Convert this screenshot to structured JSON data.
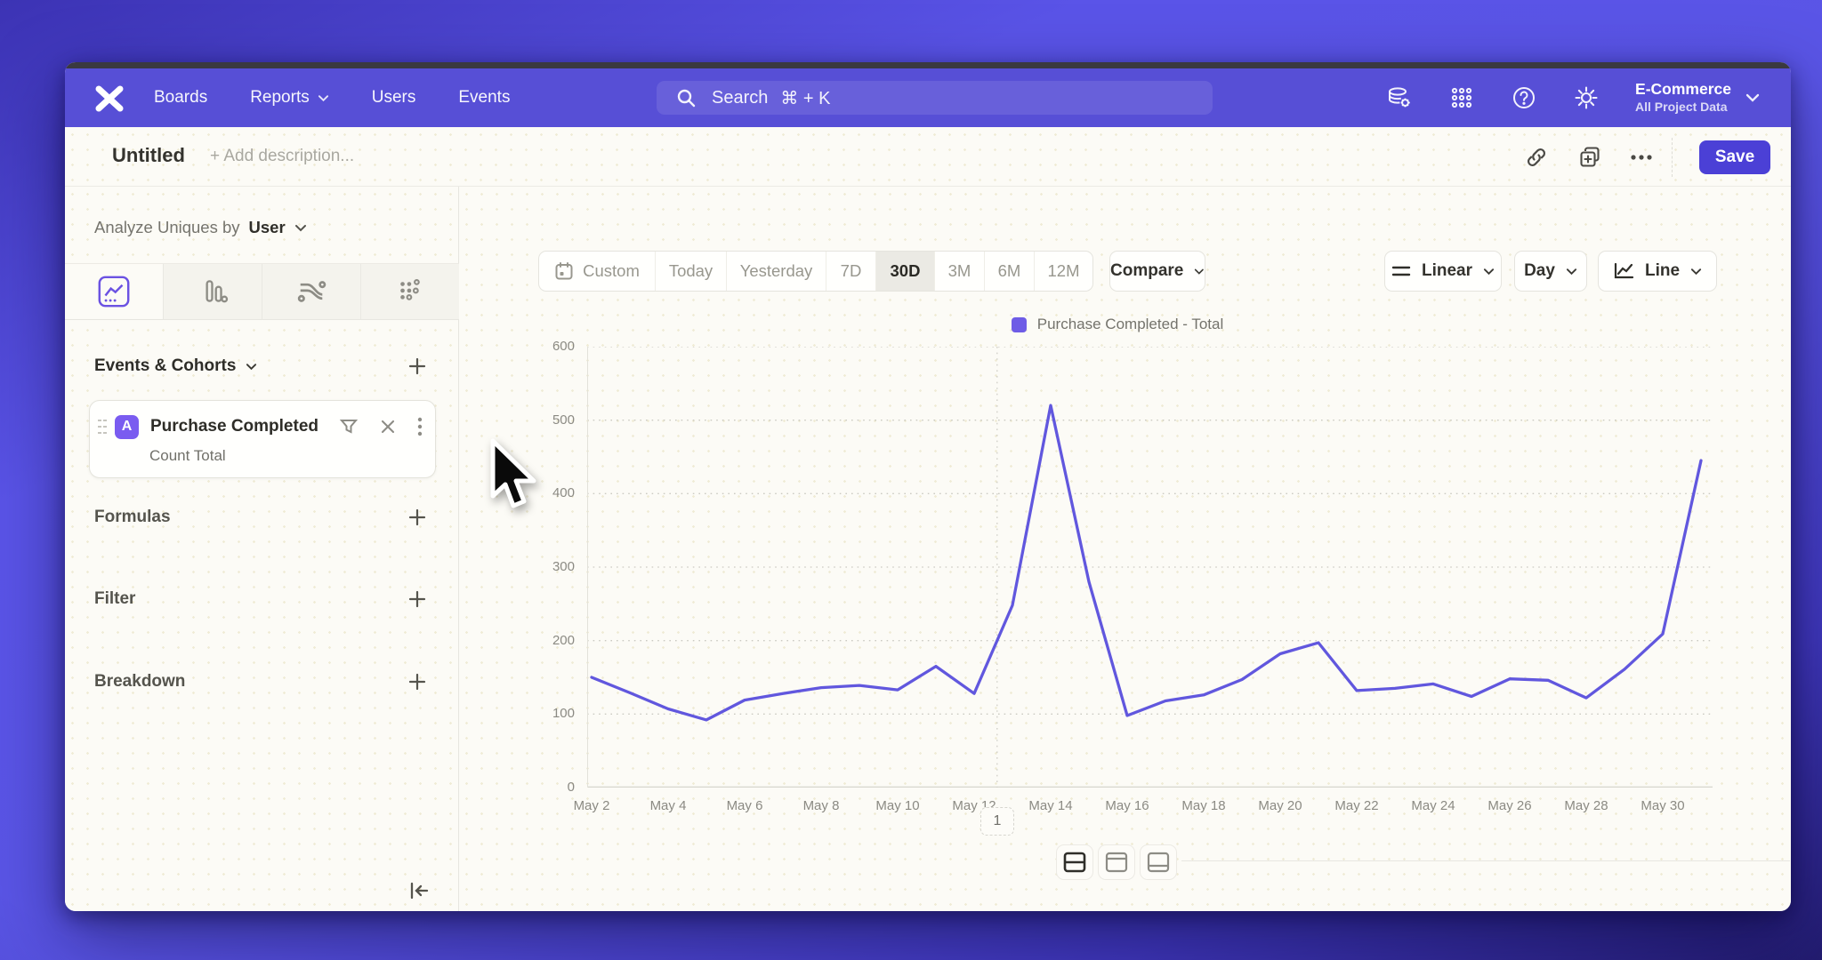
{
  "nav": {
    "logo_name": "mixpanel-logo",
    "items": [
      {
        "label": "Boards",
        "chevron": false
      },
      {
        "label": "Reports",
        "chevron": true
      },
      {
        "label": "Users",
        "chevron": false
      },
      {
        "label": "Events",
        "chevron": false
      }
    ],
    "search": {
      "placeholder": "Search",
      "shortcut": "⌘ + K"
    },
    "project": {
      "name": "E-Commerce",
      "subtitle": "All Project Data"
    }
  },
  "header": {
    "title": "Untitled",
    "description_placeholder": "+ Add description...",
    "save_label": "Save"
  },
  "sidebar": {
    "analyze_label": "Analyze Uniques by",
    "analyze_value": "User",
    "tabs": [
      {
        "icon": "line-chart-icon",
        "active": true
      },
      {
        "icon": "bar-chart-icon",
        "active": false
      },
      {
        "icon": "flows-icon",
        "active": false
      },
      {
        "icon": "scatter-icon",
        "active": false
      }
    ],
    "events_section_label": "Events & Cohorts",
    "event_card": {
      "badge": "A",
      "title": "Purchase Completed",
      "subtitle": "Count Total"
    },
    "groups": [
      {
        "label": "Formulas"
      },
      {
        "label": "Filter"
      },
      {
        "label": "Breakdown"
      }
    ]
  },
  "chart_toolbar": {
    "ranges": [
      "Custom",
      "Today",
      "Yesterday",
      "7D",
      "30D",
      "3M",
      "6M",
      "12M"
    ],
    "active_range": "30D",
    "compare_label": "Compare",
    "scale_label": "Linear",
    "interval_label": "Day",
    "type_label": "Line"
  },
  "legend": {
    "label": "Purchase Completed - Total",
    "color": "#6e5ce6"
  },
  "pagination": {
    "page": "1"
  },
  "chart_data": {
    "type": "line",
    "title": "Purchase Completed - Total",
    "x": [
      "May 2",
      "May 3",
      "May 4",
      "May 5",
      "May 6",
      "May 7",
      "May 8",
      "May 9",
      "May 10",
      "May 11",
      "May 12",
      "May 13",
      "May 14",
      "May 15",
      "May 16",
      "May 17",
      "May 18",
      "May 19",
      "May 20",
      "May 21",
      "May 22",
      "May 23",
      "May 24",
      "May 25",
      "May 26",
      "May 27",
      "May 28",
      "May 29",
      "May 30",
      "May 31"
    ],
    "values": [
      150,
      129,
      107,
      92,
      119,
      128,
      136,
      139,
      133,
      165,
      128,
      248,
      520,
      280,
      98,
      118,
      126,
      147,
      182,
      197,
      132,
      135,
      141,
      124,
      148,
      146,
      122,
      161,
      209,
      445
    ],
    "xtick_labels": [
      "May 2",
      "May 4",
      "May 6",
      "May 8",
      "May 10",
      "May 12",
      "May 14",
      "May 16",
      "May 18",
      "May 20",
      "May 22",
      "May 24",
      "May 26",
      "May 28",
      "May 30"
    ],
    "ylim": [
      0,
      600
    ],
    "yticks": [
      0,
      100,
      200,
      300,
      400,
      500,
      600
    ],
    "xlabel": "",
    "ylabel": "",
    "grid": "horizontal-dotted",
    "marker_line_x_index": 10.6,
    "line_color": "#6157de",
    "legend_position": "top-center"
  }
}
